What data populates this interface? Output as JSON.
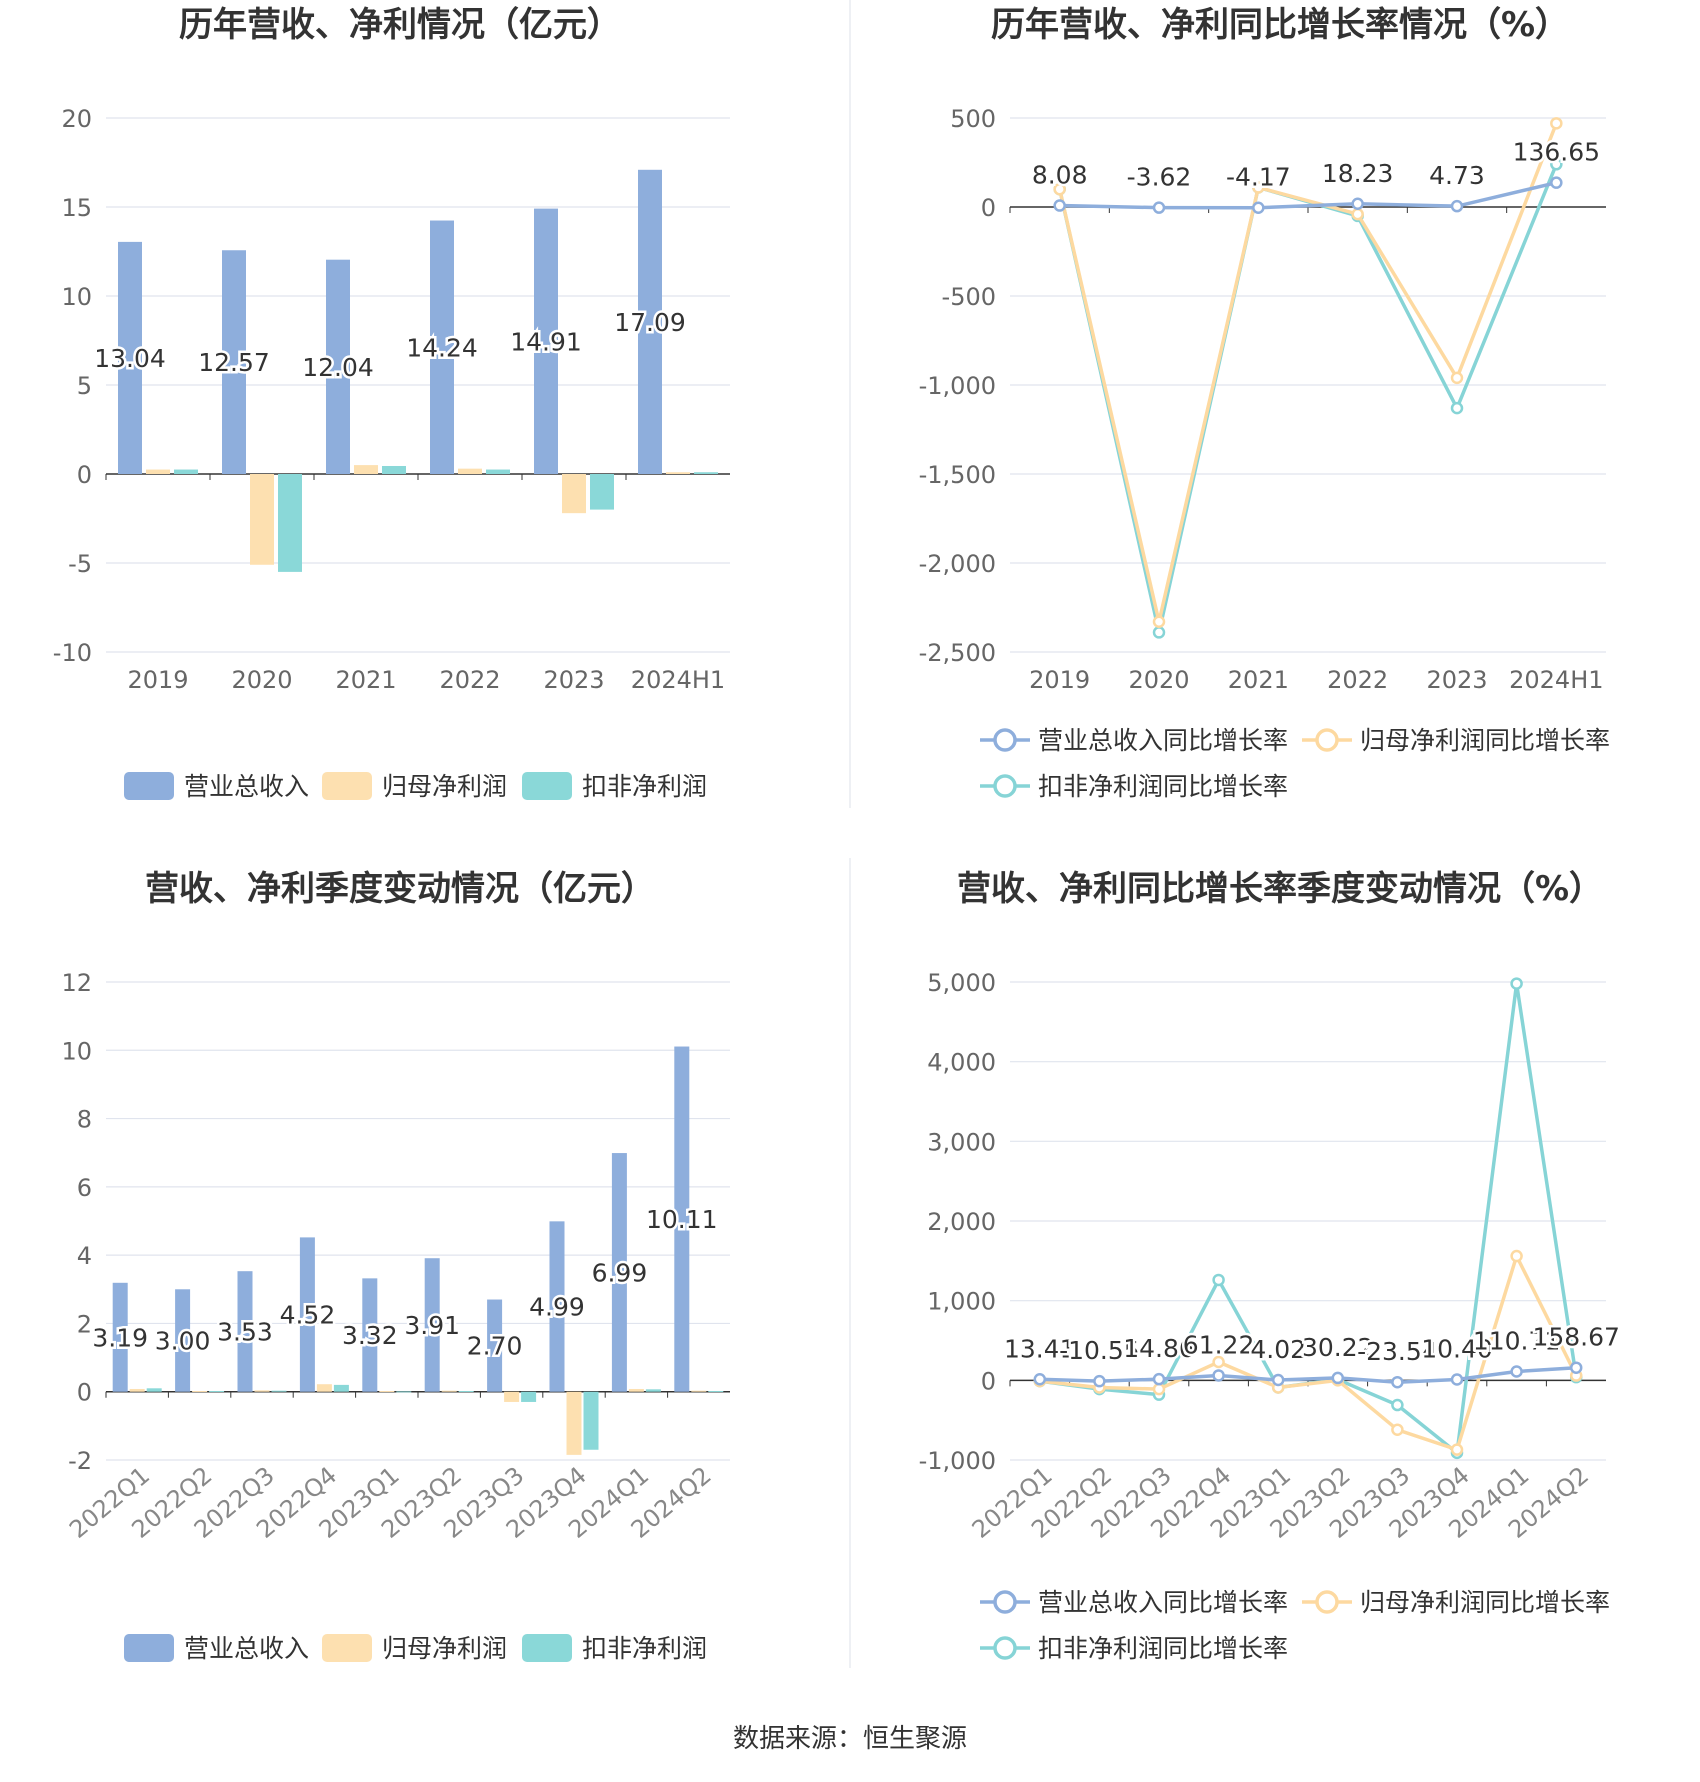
{
  "source_text": "数据来源：恒生聚源",
  "colors": {
    "revenue": "#8eaedc",
    "net_profit": "#fde0b0",
    "deducted_profit": "#8ad8d8",
    "revenue_line": "#8eaedc",
    "net_line": "#fdd9a0",
    "deducted_line": "#86d4d6"
  },
  "chart_data": [
    {
      "type": "bar",
      "title": "历年营收、净利情况（亿元）",
      "categories": [
        "2019",
        "2020",
        "2021",
        "2022",
        "2023",
        "2024H1"
      ],
      "ylim": [
        -10,
        20
      ],
      "yticks": [
        "20",
        "15",
        "10",
        "5",
        "0",
        "-5",
        "-10"
      ],
      "ytick_values": [
        20,
        15,
        10,
        5,
        0,
        -5,
        -10
      ],
      "series": [
        {
          "name": "营业总收入",
          "values": [
            13.04,
            12.57,
            12.04,
            14.24,
            14.91,
            17.09
          ],
          "labels": [
            "13.04",
            "12.57",
            "12.04",
            "14.24",
            "14.91",
            "17.09"
          ]
        },
        {
          "name": "归母净利润",
          "values": [
            0.25,
            -5.1,
            0.5,
            0.3,
            -2.2,
            0.1
          ]
        },
        {
          "name": "扣非净利润",
          "values": [
            0.25,
            -5.5,
            0.45,
            0.25,
            -2.0,
            0.1
          ]
        }
      ],
      "grid": true,
      "legend_position": "bottom"
    },
    {
      "type": "line",
      "title": "历年营收、净利同比增长率情况（%）",
      "categories": [
        "2019",
        "2020",
        "2021",
        "2022",
        "2023",
        "2024H1"
      ],
      "ylim": [
        -2500,
        500
      ],
      "yticks": [
        "500",
        "0",
        "-500",
        "-1,000",
        "-1,500",
        "-2,000",
        "-2,500"
      ],
      "ytick_values": [
        500,
        0,
        -500,
        -1000,
        -1500,
        -2000,
        -2500
      ],
      "series": [
        {
          "name": "营业总收入同比增长率",
          "values": [
            8.08,
            -3.62,
            -4.17,
            18.23,
            4.73,
            136.65
          ],
          "labels": [
            "8.08",
            "-3.62",
            "-4.17",
            "18.23",
            "4.73",
            "136.65"
          ]
        },
        {
          "name": "归母净利润同比增长率",
          "values": [
            100,
            -2330,
            110,
            -40,
            -960,
            470
          ]
        },
        {
          "name": "扣非净利润同比增长率",
          "values": [
            100,
            -2390,
            110,
            -50,
            -1130,
            240
          ]
        }
      ],
      "grid": true,
      "legend_position": "bottom"
    },
    {
      "type": "bar",
      "title": "营收、净利季度变动情况（亿元）",
      "categories": [
        "2022Q1",
        "2022Q2",
        "2022Q3",
        "2022Q4",
        "2023Q1",
        "2023Q2",
        "2023Q3",
        "2023Q4",
        "2024Q1",
        "2024Q2"
      ],
      "ylim": [
        -2,
        12
      ],
      "yticks": [
        "12",
        "10",
        "8",
        "6",
        "4",
        "2",
        "0",
        "-2"
      ],
      "ytick_values": [
        12,
        10,
        8,
        6,
        4,
        2,
        0,
        -2
      ],
      "series": [
        {
          "name": "营业总收入",
          "values": [
            3.19,
            3.0,
            3.53,
            4.52,
            3.32,
            3.91,
            2.7,
            4.99,
            6.99,
            10.11
          ],
          "labels": [
            "3.19",
            "3.00",
            "3.53",
            "4.52",
            "3.32",
            "3.91",
            "2.70",
            "4.99",
            "6.99",
            "10.11"
          ]
        },
        {
          "name": "归母净利润",
          "values": [
            0.08,
            0.02,
            0.04,
            0.22,
            0.02,
            0.03,
            -0.3,
            -1.85,
            0.08,
            0.03
          ]
        },
        {
          "name": "扣非净利润",
          "values": [
            0.1,
            0.02,
            0.03,
            0.2,
            0.01,
            0.02,
            -0.3,
            -1.7,
            0.07,
            0.02
          ]
        }
      ],
      "grid": true,
      "legend_position": "bottom"
    },
    {
      "type": "line",
      "title": "营收、净利同比增长率季度变动情况（%）",
      "categories": [
        "2022Q1",
        "2022Q2",
        "2022Q3",
        "2022Q4",
        "2023Q1",
        "2023Q2",
        "2023Q3",
        "2023Q4",
        "2024Q1",
        "2024Q2"
      ],
      "ylim": [
        -1000,
        5000
      ],
      "yticks": [
        "5,000",
        "4,000",
        "3,000",
        "2,000",
        "1,000",
        "0",
        "-1,000"
      ],
      "ytick_values": [
        5000,
        4000,
        3000,
        2000,
        1000,
        0,
        -1000
      ],
      "series": [
        {
          "name": "营业总收入同比增长率",
          "values": [
            13.41,
            -10.55,
            14.86,
            61.22,
            4.02,
            30.22,
            -23.54,
            10.4,
            110.71,
            158.67
          ],
          "labels": [
            "13.41",
            "-10.55",
            "14.86",
            "61.22",
            "4.02",
            "30.22",
            "-23.54",
            "10.40",
            "110.71",
            "158.67"
          ]
        },
        {
          "name": "归母净利润同比增长率",
          "values": [
            -10,
            -90,
            -110,
            230,
            -90,
            0,
            -620,
            -870,
            1560,
            60
          ]
        },
        {
          "name": "扣非净利润同比增长率",
          "values": [
            -10,
            -110,
            -180,
            1260,
            -90,
            10,
            -310,
            -910,
            4980,
            40
          ]
        }
      ],
      "grid": true,
      "legend_position": "bottom"
    }
  ]
}
